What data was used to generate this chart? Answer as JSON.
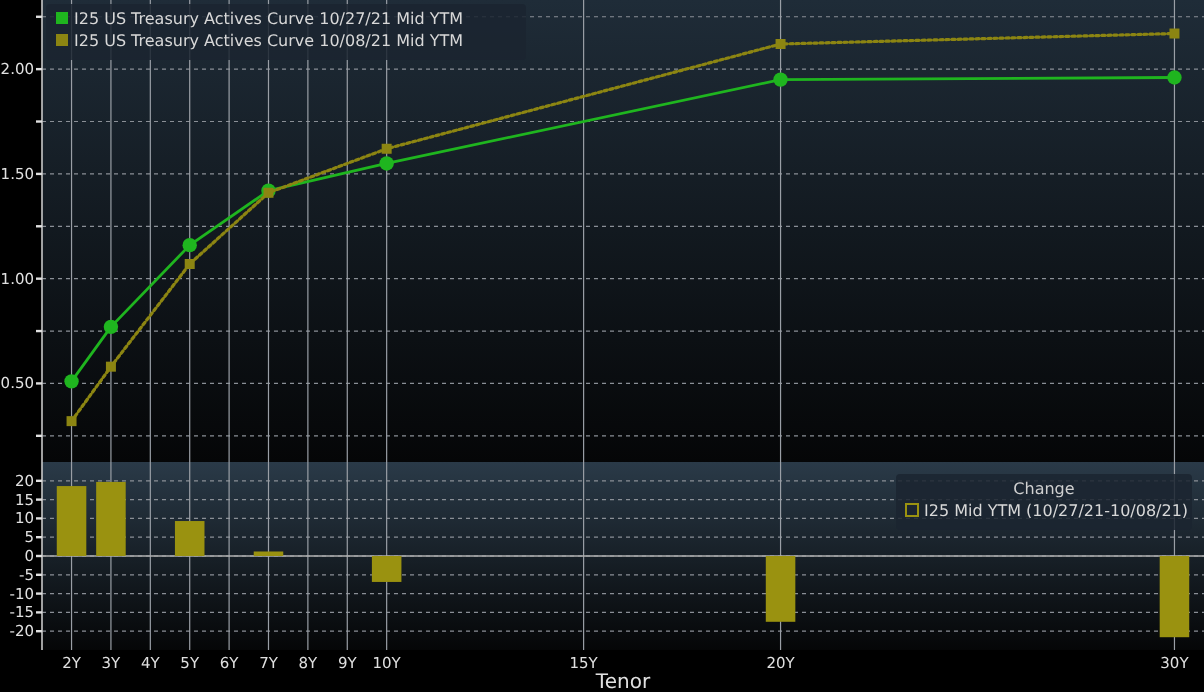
{
  "chart_data": [
    {
      "type": "line",
      "x": [
        2,
        3,
        5,
        7,
        10,
        20,
        30
      ],
      "series": [
        {
          "name": "I25 US Treasury Actives Curve 10/27/21 Mid YTM",
          "color": "#1fb51f",
          "values": [
            0.51,
            0.77,
            1.16,
            1.42,
            1.55,
            1.95,
            1.96
          ],
          "marker": "circle",
          "line_style": "solid"
        },
        {
          "name": "I25 US Treasury Actives Curve 10/08/21 Mid YTM",
          "color": "#8c8512",
          "values": [
            0.32,
            0.58,
            1.07,
            1.41,
            1.62,
            2.12,
            2.17
          ],
          "marker": "square",
          "line_style": "dotted"
        }
      ],
      "xlim": [
        1.25,
        30.75
      ],
      "xticks": [
        {
          "value": 2,
          "label": null
        },
        {
          "value": 3,
          "label": null
        },
        {
          "value": 4,
          "label": null
        },
        {
          "value": 5,
          "label": null
        },
        {
          "value": 6,
          "label": null
        },
        {
          "value": 7,
          "label": null
        },
        {
          "value": 8,
          "label": null
        },
        {
          "value": 9,
          "label": null
        },
        {
          "value": 10,
          "label": null
        },
        {
          "value": 15,
          "label": null
        },
        {
          "value": 20,
          "label": null
        },
        {
          "value": 30,
          "label": null
        }
      ],
      "ylim": [
        0.125,
        2.33
      ],
      "yticks": [
        {
          "value": 0.25,
          "label": null
        },
        {
          "value": 0.5,
          "label": "0.50"
        },
        {
          "value": 0.75,
          "label": null
        },
        {
          "value": 1,
          "label": "1.00"
        },
        {
          "value": 1.25,
          "label": null
        },
        {
          "value": 1.5,
          "label": "1.50"
        },
        {
          "value": 1.75,
          "label": null
        },
        {
          "value": 2,
          "label": "2.00"
        },
        {
          "value": 2.25,
          "label": null
        }
      ],
      "grid": true,
      "legend": "top left",
      "tick_labels": "y"
    },
    {
      "type": "bar",
      "x": [
        2,
        3,
        5,
        7,
        10,
        20,
        30
      ],
      "legend_title": "Change",
      "xlabel": "Tenor",
      "series": [
        {
          "name": "I25 Mid YTM (10/27/21-10/08/21)",
          "color": "#9a9210",
          "values": [
            18.6,
            19.7,
            9.3,
            1.2,
            -6.9,
            -17.5,
            -21.6
          ]
        }
      ],
      "xlim": [
        1.25,
        30.75
      ],
      "xticks": [
        {
          "value": 2,
          "label": "2Y"
        },
        {
          "value": 3,
          "label": "3Y"
        },
        {
          "value": 4,
          "label": "4Y"
        },
        {
          "value": 5,
          "label": "5Y"
        },
        {
          "value": 6,
          "label": "6Y"
        },
        {
          "value": 7,
          "label": "7Y"
        },
        {
          "value": 8,
          "label": "8Y"
        },
        {
          "value": 9,
          "label": "9Y"
        },
        {
          "value": 10,
          "label": "10Y"
        },
        {
          "value": 15,
          "label": "15Y"
        },
        {
          "value": 20,
          "label": "20Y"
        },
        {
          "value": 30,
          "label": "30Y"
        }
      ],
      "ylim": [
        -25,
        25
      ],
      "yticks": [
        -20,
        -15,
        -10,
        -5,
        0,
        5,
        10,
        15,
        20
      ],
      "grid": true,
      "legend": "top right"
    }
  ]
}
